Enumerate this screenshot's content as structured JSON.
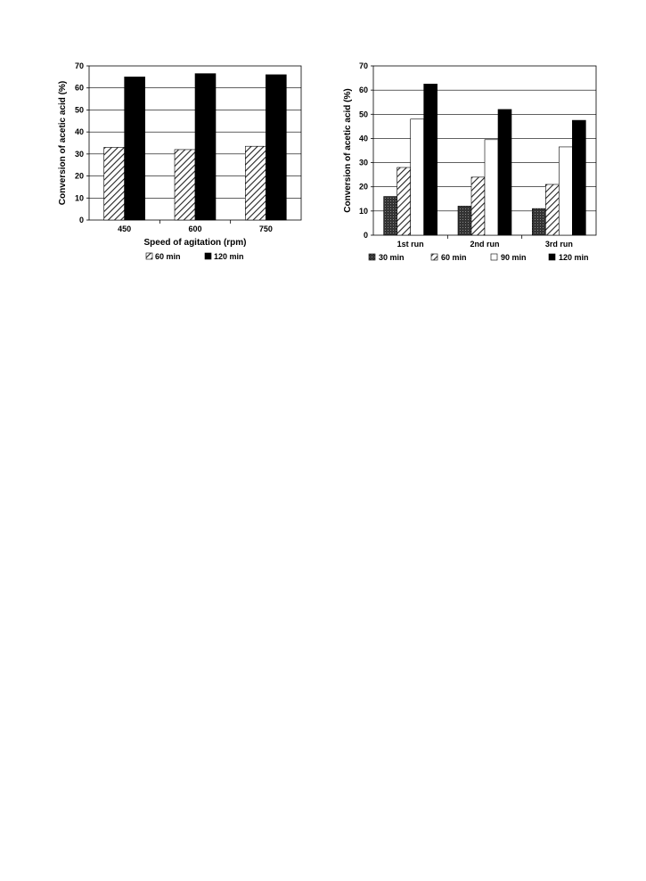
{
  "chart_data": [
    {
      "type": "bar",
      "categories": [
        "450",
        "600",
        "750"
      ],
      "xlabel": "Speed of agitation (rpm)",
      "ylabel": "Conversion of acetic acid (%)",
      "ylim": [
        0,
        70
      ],
      "yticks": [
        0,
        10,
        20,
        30,
        40,
        50,
        60,
        70
      ],
      "grid": true,
      "legend_position": "bottom",
      "series": [
        {
          "name": "60 min",
          "pattern": "diagonal-hatch",
          "values": [
            33,
            32,
            33.5
          ]
        },
        {
          "name": "120 min",
          "pattern": "solid-black",
          "values": [
            65,
            66.5,
            66
          ]
        }
      ]
    },
    {
      "type": "bar",
      "categories": [
        "1st run",
        "2nd run",
        "3rd run"
      ],
      "xlabel": "",
      "ylabel": "Conversion of acetic acid (%)",
      "ylim": [
        0,
        70
      ],
      "yticks": [
        0,
        10,
        20,
        30,
        40,
        50,
        60,
        70
      ],
      "grid": true,
      "legend_position": "bottom",
      "series": [
        {
          "name": "30 min",
          "pattern": "dark-crosshatch",
          "values": [
            16,
            12,
            11
          ]
        },
        {
          "name": "60 min",
          "pattern": "diagonal-hatch",
          "values": [
            28,
            24,
            21
          ]
        },
        {
          "name": "90 min",
          "pattern": "white",
          "values": [
            48,
            39.5,
            36.5
          ]
        },
        {
          "name": "120 min",
          "pattern": "solid-black",
          "values": [
            62.5,
            52,
            47.5
          ]
        }
      ]
    }
  ]
}
